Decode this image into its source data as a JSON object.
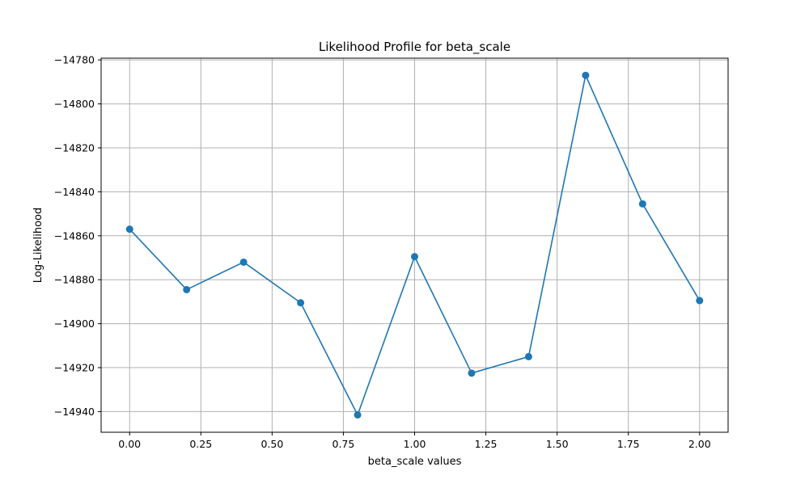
{
  "chart_data": {
    "type": "line",
    "title": "Likelihood Profile for beta_scale",
    "xlabel": "beta_scale values",
    "ylabel": "Log-Likelihood",
    "x": [
      0.0,
      0.2,
      0.4,
      0.6,
      0.8,
      1.0,
      1.2,
      1.4,
      1.6,
      1.8,
      2.0
    ],
    "series": [
      {
        "values": [
          -14857,
          -14884.5,
          -14872,
          -14890.5,
          -14941.5,
          -14869.5,
          -14922.5,
          -14915,
          -14787,
          -14845.5,
          -14889.5
        ],
        "color": "#1f77b4",
        "marker": "circle"
      }
    ],
    "xlim": [
      -0.1,
      2.1
    ],
    "ylim": [
      -14949.4,
      -14779.2
    ],
    "xticks": [
      0.0,
      0.25,
      0.5,
      0.75,
      1.0,
      1.25,
      1.5,
      1.75,
      2.0
    ],
    "xtick_labels": [
      "0.00",
      "0.25",
      "0.50",
      "0.75",
      "1.00",
      "1.25",
      "1.50",
      "1.75",
      "2.00"
    ],
    "yticks": [
      -14940,
      -14920,
      -14900,
      -14880,
      -14860,
      -14840,
      -14820,
      -14800,
      -14780
    ],
    "ytick_labels": [
      "−14940",
      "−14920",
      "−14900",
      "−14880",
      "−14860",
      "−14840",
      "−14820",
      "−14800",
      "−14780"
    ],
    "grid": true,
    "grid_color": "#b0b0b0",
    "legend": "none"
  }
}
